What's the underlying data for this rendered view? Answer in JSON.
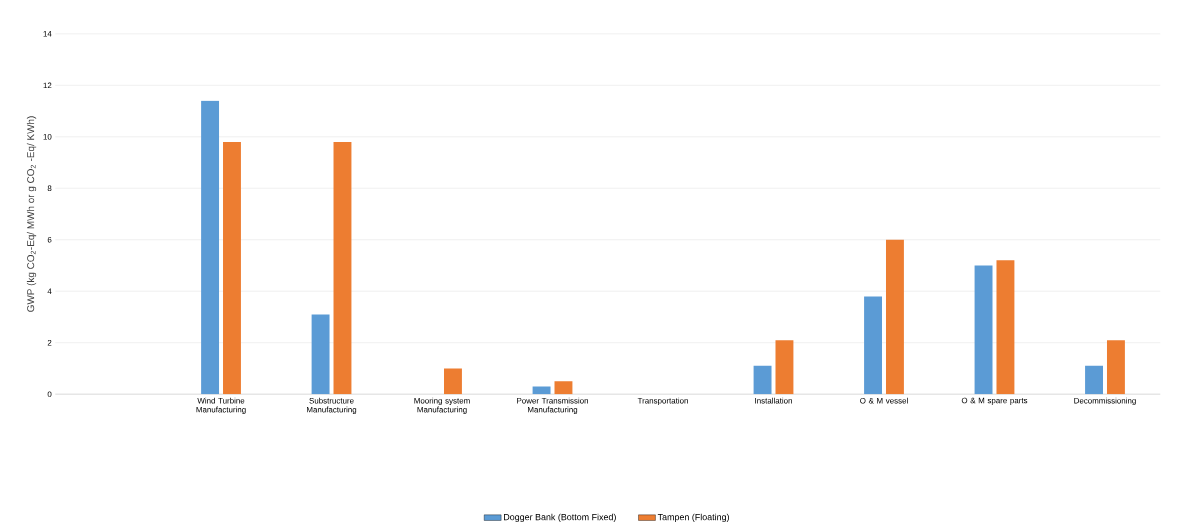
{
  "chart_data": {
    "type": "bar",
    "ylabel": "GWP (kg CO$_{2}$-Eq/ MWh or g CO$_{2}$ -Eq/ KWh)",
    "categories": [
      null,
      "Wind Turbine Manufacturing",
      "Substructure Manufacturing",
      "Mooring system Manufacturing",
      "Power Transmission Manufacturing",
      "Transportation",
      "Installation",
      "O & M vessel",
      "O & M spare parts",
      "Decommissioning"
    ],
    "series": [
      {
        "name": "Dogger Bank (Bottom Fixed)",
        "color": "#5b9bd5",
        "values": [
          0,
          11.4,
          3.1,
          0,
          0.3,
          0,
          1.1,
          3.8,
          5.0,
          1.1
        ]
      },
      {
        "name": "Tampen (Floating)",
        "color": "#ed7d31",
        "values": [
          0,
          9.8,
          9.8,
          1.0,
          0.5,
          0,
          2.1,
          6.0,
          5.2,
          2.1
        ]
      }
    ],
    "ylim": [
      0,
      14
    ],
    "yticks": [
      0,
      2,
      4,
      6,
      8,
      10,
      12,
      14
    ],
    "grid": "y",
    "legend": "bottom"
  }
}
